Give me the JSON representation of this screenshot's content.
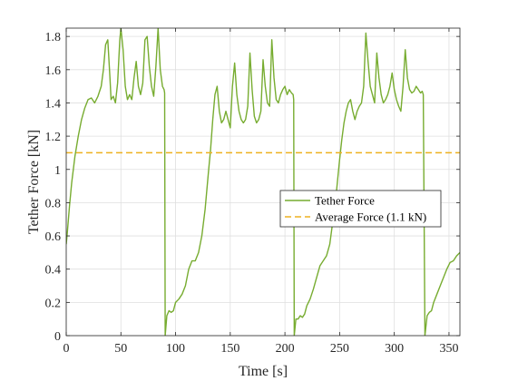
{
  "chart_data": {
    "type": "line",
    "title": "",
    "xlabel": "Time [s]",
    "ylabel": "Tether Force [kN]",
    "xlim": [
      0,
      360
    ],
    "ylim": [
      0,
      1.85
    ],
    "xticks": [
      0,
      50,
      100,
      150,
      200,
      250,
      300,
      350
    ],
    "yticks": [
      0,
      0.2,
      0.4,
      0.6,
      0.8,
      1.0,
      1.2,
      1.4,
      1.6,
      1.8
    ],
    "ytick_labels": [
      "0",
      "0.2",
      "0.4",
      "0.6",
      "0.8",
      "1",
      "1.2",
      "1.4",
      "1.6",
      "1.8"
    ],
    "xtick_labels": [
      "0",
      "50",
      "100",
      "150",
      "200",
      "250",
      "300",
      "350"
    ],
    "grid": true,
    "legend_position": "center-right",
    "series": [
      {
        "name": "Tether Force",
        "color": "#77AC30",
        "style": "solid",
        "x": [
          0,
          1,
          3,
          5,
          8,
          11,
          14,
          17,
          20,
          23,
          26,
          29,
          32,
          34,
          36,
          38,
          40,
          41,
          43,
          45,
          47,
          49,
          50,
          52,
          54,
          56,
          58,
          60,
          62,
          64,
          66,
          68,
          70,
          72,
          74,
          76,
          78,
          80,
          82,
          84,
          86,
          88,
          89.5,
          90,
          90.5,
          92,
          94,
          96,
          98,
          100,
          103,
          106,
          109,
          112,
          115,
          118,
          121,
          124,
          127,
          130,
          132,
          134,
          136,
          138,
          140,
          142,
          144,
          146,
          148,
          150,
          152,
          154,
          156,
          158,
          160,
          162,
          164,
          166,
          168,
          170,
          172,
          174,
          176,
          178,
          180,
          182,
          184,
          186,
          188,
          190,
          192,
          194,
          196,
          198,
          200,
          202,
          204,
          206,
          207.5,
          208,
          208.5,
          210,
          212,
          214,
          216,
          218,
          220,
          223,
          226,
          229,
          232,
          235,
          238,
          241,
          244,
          247,
          250,
          252,
          254,
          256,
          258,
          260,
          262,
          264,
          266,
          268,
          270,
          272,
          274,
          276,
          278,
          280,
          282,
          284,
          286,
          288,
          290,
          292,
          294,
          296,
          298,
          300,
          302,
          304,
          306,
          308,
          310,
          312,
          314,
          316,
          318,
          320,
          322,
          324,
          325.5,
          326,
          326.5,
          328,
          330,
          332,
          334,
          336,
          339,
          342,
          345,
          348,
          351,
          354,
          357,
          360
        ],
        "y": [
          0.55,
          0.62,
          0.78,
          0.92,
          1.08,
          1.2,
          1.3,
          1.37,
          1.42,
          1.43,
          1.4,
          1.44,
          1.5,
          1.6,
          1.75,
          1.78,
          1.55,
          1.42,
          1.44,
          1.4,
          1.52,
          1.78,
          1.85,
          1.72,
          1.5,
          1.42,
          1.45,
          1.42,
          1.55,
          1.65,
          1.5,
          1.45,
          1.52,
          1.78,
          1.8,
          1.62,
          1.5,
          1.44,
          1.62,
          1.85,
          1.6,
          1.5,
          1.48,
          1.46,
          0.0,
          0.12,
          0.15,
          0.14,
          0.15,
          0.2,
          0.22,
          0.25,
          0.3,
          0.4,
          0.45,
          0.45,
          0.5,
          0.6,
          0.76,
          0.98,
          1.12,
          1.3,
          1.45,
          1.5,
          1.35,
          1.28,
          1.3,
          1.35,
          1.3,
          1.25,
          1.5,
          1.64,
          1.45,
          1.35,
          1.3,
          1.28,
          1.3,
          1.38,
          1.7,
          1.48,
          1.32,
          1.28,
          1.3,
          1.35,
          1.66,
          1.5,
          1.4,
          1.38,
          1.78,
          1.55,
          1.42,
          1.4,
          1.45,
          1.48,
          1.5,
          1.45,
          1.48,
          1.46,
          1.45,
          1.42,
          0.0,
          0.1,
          0.1,
          0.12,
          0.11,
          0.13,
          0.18,
          0.22,
          0.28,
          0.35,
          0.42,
          0.45,
          0.48,
          0.55,
          0.7,
          0.86,
          1.06,
          1.18,
          1.28,
          1.35,
          1.4,
          1.42,
          1.35,
          1.3,
          1.35,
          1.38,
          1.4,
          1.5,
          1.82,
          1.65,
          1.5,
          1.45,
          1.4,
          1.7,
          1.55,
          1.45,
          1.4,
          1.42,
          1.45,
          1.5,
          1.58,
          1.48,
          1.42,
          1.38,
          1.35,
          1.5,
          1.72,
          1.55,
          1.48,
          1.46,
          1.47,
          1.5,
          1.48,
          1.46,
          1.47,
          1.46,
          1.45,
          0.0,
          0.12,
          0.14,
          0.15,
          0.2,
          0.25,
          0.3,
          0.35,
          0.4,
          0.44,
          0.45,
          0.48,
          0.5
        ]
      },
      {
        "name": "Average Force (1.1 kN)",
        "color": "#EDB120",
        "style": "dashed",
        "x": [
          0,
          360
        ],
        "y": [
          1.1,
          1.1
        ]
      }
    ]
  }
}
